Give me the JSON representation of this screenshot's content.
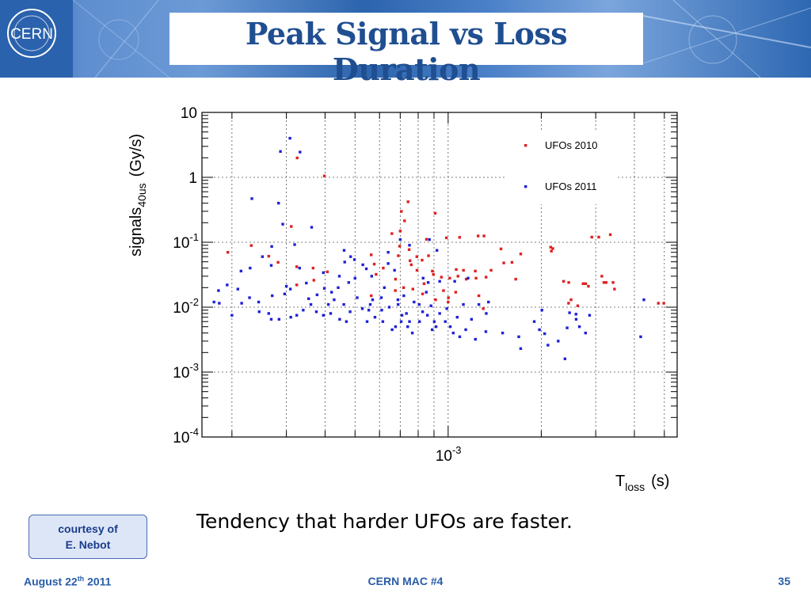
{
  "slide": {
    "title": "Peak Signal vs Loss Duration",
    "caption": "Tendency that harder UFOs are faster.",
    "courtesy_line1": "courtesy of",
    "courtesy_line2": "E. Nebot",
    "logo_text": "CERN",
    "footer": {
      "date_pre": "August 22",
      "date_sup": "th",
      "date_post": " 2011",
      "center": "CERN MAC #4",
      "page": "35"
    }
  },
  "colors": {
    "ufo2010": "#e02020",
    "ufo2011": "#2020d8",
    "title": "#1f4e91",
    "footer": "#2a5ca8"
  },
  "chart_data": {
    "type": "scatter",
    "x_scale": "log",
    "y_scale": "log",
    "xlim": [
      0.00016,
      0.0055
    ],
    "ylim": [
      0.0001,
      10
    ],
    "grid": true,
    "legend_position": "top-right",
    "ylabel": "signals",
    "ylabel_sub": "40us",
    "ylabel_unit": "(Gy/s)",
    "xlabel": "T",
    "xlabel_sub": "loss",
    "xlabel_unit": "(s)",
    "y_ticks": [
      {
        "value": 10,
        "base": "10",
        "exp": ""
      },
      {
        "value": 1,
        "base": "1",
        "exp": ""
      },
      {
        "value": 0.1,
        "base": "10",
        "exp": "-1"
      },
      {
        "value": 0.01,
        "base": "10",
        "exp": "-2"
      },
      {
        "value": 0.001,
        "base": "10",
        "exp": "-3"
      },
      {
        "value": 0.0001,
        "base": "10",
        "exp": "-4"
      }
    ],
    "x_ticks": [
      {
        "value": 0.001,
        "base": "10",
        "exp": "-3"
      }
    ],
    "series": [
      {
        "name": "UFOs 2010",
        "points": [
          [
            0.000325,
            1.99
          ],
          [
            0.000398,
            1.05
          ],
          [
            0.000311,
            0.175
          ],
          [
            0.000231,
            0.089
          ],
          [
            0.000194,
            0.07
          ],
          [
            0.000263,
            0.061
          ],
          [
            0.000282,
            0.049
          ],
          [
            0.000324,
            0.042
          ],
          [
            0.000366,
            0.04
          ],
          [
            0.000407,
            0.035
          ],
          [
            0.000368,
            0.026
          ],
          [
            0.000324,
            0.022
          ],
          [
            0.000564,
            0.064
          ],
          [
            0.000577,
            0.046
          ],
          [
            0.000585,
            0.032
          ],
          [
            0.000564,
            0.015
          ],
          [
            0.000617,
            0.04
          ],
          [
            0.000676,
            0.027
          ],
          [
            0.00069,
            0.062
          ],
          [
            0.000658,
            0.136
          ],
          [
            0.0007,
            0.149
          ],
          [
            0.000697,
            0.087
          ],
          [
            0.000753,
            0.052
          ],
          [
            0.000675,
            0.018
          ],
          [
            0.000742,
            0.42
          ],
          [
            0.000706,
            0.299
          ],
          [
            0.000723,
            0.214
          ],
          [
            0.000748,
            0.077
          ],
          [
            0.000792,
            0.06
          ],
          [
            0.00076,
            0.045
          ],
          [
            0.000793,
            0.037
          ],
          [
            0.000718,
            0.02
          ],
          [
            0.000769,
            0.019
          ],
          [
            0.000851,
            0.111
          ],
          [
            0.000864,
            0.062
          ],
          [
            0.000824,
            0.053
          ],
          [
            0.000896,
            0.032
          ],
          [
            0.000836,
            0.023
          ],
          [
            0.000908,
            0.28
          ],
          [
            0.000889,
            0.036
          ],
          [
            0.000951,
            0.029
          ],
          [
            0.000966,
            0.018
          ],
          [
            0.000827,
            0.016
          ],
          [
            0.000911,
            0.013
          ],
          [
            0.001012,
            0.028
          ],
          [
            0.001062,
            0.038
          ],
          [
            0.001076,
            0.03
          ],
          [
            0.001002,
            0.014
          ],
          [
            0.001,
            0.012
          ],
          [
            0.000987,
            0.117
          ],
          [
            0.001089,
            0.119
          ],
          [
            0.001058,
            0.017
          ],
          [
            0.001144,
            0.027
          ],
          [
            0.001121,
            0.037
          ],
          [
            0.001224,
            0.036
          ],
          [
            0.001231,
            0.028
          ],
          [
            0.00125,
            0.125
          ],
          [
            0.001306,
            0.125
          ],
          [
            0.001377,
            0.037
          ],
          [
            0.001326,
            0.029
          ],
          [
            0.001257,
            0.015
          ],
          [
            0.001299,
            0.0095
          ],
          [
            0.001482,
            0.079
          ],
          [
            0.001513,
            0.048
          ],
          [
            0.001608,
            0.049
          ],
          [
            0.001717,
            0.066
          ],
          [
            0.001654,
            0.027
          ],
          [
            0.002145,
            0.084
          ],
          [
            0.00218,
            0.08
          ],
          [
            0.002156,
            0.073
          ],
          [
            0.002362,
            0.025
          ],
          [
            0.002454,
            0.024
          ],
          [
            0.002451,
            0.0115
          ],
          [
            0.002497,
            0.013
          ],
          [
            0.002624,
            0.0105
          ],
          [
            0.002731,
            0.023
          ],
          [
            0.002784,
            0.023
          ],
          [
            0.002841,
            0.021
          ],
          [
            0.002914,
            0.12
          ],
          [
            0.003069,
            0.12
          ],
          [
            0.00314,
            0.03
          ],
          [
            0.003188,
            0.024
          ],
          [
            0.003242,
            0.024
          ],
          [
            0.003344,
            0.131
          ],
          [
            0.003413,
            0.024
          ],
          [
            0.00345,
            0.019
          ],
          [
            0.004782,
            0.0115
          ],
          [
            0.00498,
            0.0115
          ]
        ]
      },
      {
        "name": "UFOs 2011",
        "points": [
          [
            0.000308,
            4.0
          ],
          [
            0.000287,
            2.5
          ],
          [
            0.000332,
            2.45
          ],
          [
            0.000232,
            0.47
          ],
          [
            0.000283,
            0.4
          ],
          [
            0.000292,
            0.19
          ],
          [
            0.000362,
            0.17
          ],
          [
            0.000319,
            0.092
          ],
          [
            0.000269,
            0.086
          ],
          [
            0.000251,
            0.06
          ],
          [
            0.000268,
            0.044
          ],
          [
            0.000229,
            0.04
          ],
          [
            0.000214,
            0.036
          ],
          [
            0.000193,
            0.022
          ],
          [
            0.000181,
            0.018
          ],
          [
            0.000175,
            0.012
          ],
          [
            0.000182,
            0.0115
          ],
          [
            0.000209,
            0.019
          ],
          [
            0.000228,
            0.014
          ],
          [
            0.000244,
            0.012
          ],
          [
            0.000268,
            0.0065
          ],
          [
            0.000284,
            0.0065
          ],
          [
            0.000263,
            0.008
          ],
          [
            0.00031,
            0.007
          ],
          [
            0.000324,
            0.0075
          ],
          [
            0.000296,
            0.016
          ],
          [
            0.000309,
            0.019
          ],
          [
            0.000331,
            0.04
          ],
          [
            0.000348,
            0.0235
          ],
          [
            0.000354,
            0.0135
          ],
          [
            0.000377,
            0.0155
          ],
          [
            0.000398,
            0.0195
          ],
          [
            0.000375,
            0.0085
          ],
          [
            0.000395,
            0.0075
          ],
          [
            0.00041,
            0.011
          ],
          [
            0.000417,
            0.008
          ],
          [
            0.000428,
            0.013
          ],
          [
            0.000446,
            0.0065
          ],
          [
            0.000469,
            0.006
          ],
          [
            0.000482,
            0.0085
          ],
          [
            0.000441,
            0.02
          ],
          [
            0.000477,
            0.024
          ],
          [
            0.000463,
            0.0495
          ],
          [
            0.000484,
            0.06
          ],
          [
            0.000498,
            0.054
          ],
          [
            0.000461,
            0.075
          ],
          [
            0.000544,
            0.039
          ],
          [
            0.000566,
            0.03
          ],
          [
            0.000508,
            0.014
          ],
          [
            0.000528,
            0.0095
          ],
          [
            0.000554,
            0.009
          ],
          [
            0.00057,
            0.013
          ],
          [
            0.00058,
            0.007
          ],
          [
            0.000547,
            0.006
          ],
          [
            0.000608,
            0.014
          ],
          [
            0.000622,
            0.02
          ],
          [
            0.000645,
            0.01
          ],
          [
            0.000615,
            0.006
          ],
          [
            0.000659,
            0.0045
          ],
          [
            0.000676,
            0.005
          ],
          [
            0.000705,
            0.006
          ],
          [
            0.000688,
            0.013
          ],
          [
            0.000719,
            0.015
          ],
          [
            0.00064,
            0.047
          ],
          [
            0.000671,
            0.037
          ],
          [
            0.000689,
            0.011
          ],
          [
            0.000709,
            0.0075
          ],
          [
            0.000733,
            0.008
          ],
          [
            0.00075,
            0.006
          ],
          [
            0.000766,
            0.004
          ],
          [
            0.000776,
            0.012
          ],
          [
            0.000806,
            0.011
          ],
          [
            0.000827,
            0.0085
          ],
          [
            0.000808,
            0.006
          ],
          [
            0.000857,
            0.0075
          ],
          [
            0.00085,
            0.017
          ],
          [
            0.000862,
            0.024
          ],
          [
            0.000888,
            0.0045
          ],
          [
            0.000902,
            0.006
          ],
          [
            0.000914,
            0.005
          ],
          [
            0.000939,
            0.008
          ],
          [
            0.000939,
            0.025
          ],
          [
            0.000979,
            0.006
          ],
          [
            0.001016,
            0.005
          ],
          [
            0.001039,
            0.004
          ],
          [
            0.00107,
            0.007
          ],
          [
            0.00109,
            0.0035
          ],
          [
            0.00114,
            0.0045
          ],
          [
            0.001225,
            0.0032
          ],
          [
            0.001324,
            0.0042
          ],
          [
            0.001328,
            0.008
          ],
          [
            0.001257,
            0.011
          ],
          [
            0.00135,
            0.012
          ],
          [
            0.0015,
            0.004
          ],
          [
            0.001692,
            0.0035
          ],
          [
            0.001716,
            0.0023
          ],
          [
            0.001898,
            0.006
          ],
          [
            0.001973,
            0.0045
          ],
          [
            0.00201,
            0.009
          ],
          [
            0.002051,
            0.0039
          ],
          [
            0.002102,
            0.0026
          ],
          [
            0.002269,
            0.003
          ],
          [
            0.002386,
            0.0016
          ],
          [
            0.002425,
            0.0048
          ],
          [
            0.002469,
            0.0082
          ],
          [
            0.00259,
            0.0078
          ],
          [
            0.002593,
            0.0065
          ],
          [
            0.002657,
            0.005
          ],
          [
            0.002781,
            0.004
          ],
          [
            0.002866,
            0.0075
          ],
          [
            0.004193,
            0.0035
          ],
          [
            0.004293,
            0.013
          ],
          [
            0.0007,
            0.11
          ],
          [
            0.00075,
            0.09
          ],
          [
            0.00087,
            0.11
          ],
          [
            0.00092,
            0.075
          ],
          [
            0.00064,
            0.07
          ],
          [
            0.00083,
            0.028
          ],
          [
            0.00105,
            0.025
          ],
          [
            0.00116,
            0.028
          ],
          [
            0.0005,
            0.028
          ],
          [
            0.00053,
            0.045
          ],
          [
            0.000445,
            0.03
          ],
          [
            0.00042,
            0.017
          ],
          [
            0.000395,
            0.034
          ],
          [
            0.00036,
            0.011
          ],
          [
            0.00034,
            0.009
          ],
          [
            0.0003,
            0.021
          ],
          [
            0.00027,
            0.015
          ],
          [
            0.000245,
            0.0085
          ],
          [
            0.000215,
            0.0115
          ],
          [
            0.0002,
            0.0075
          ],
          [
            0.00046,
            0.011
          ],
          [
            0.00061,
            0.009
          ],
          [
            0.00074,
            0.005
          ],
          [
            0.00099,
            0.0095
          ],
          [
            0.00112,
            0.011
          ],
          [
            0.00119,
            0.0065
          ],
          [
            0.00088,
            0.0105
          ],
          [
            0.00056,
            0.011
          ]
        ]
      }
    ]
  }
}
